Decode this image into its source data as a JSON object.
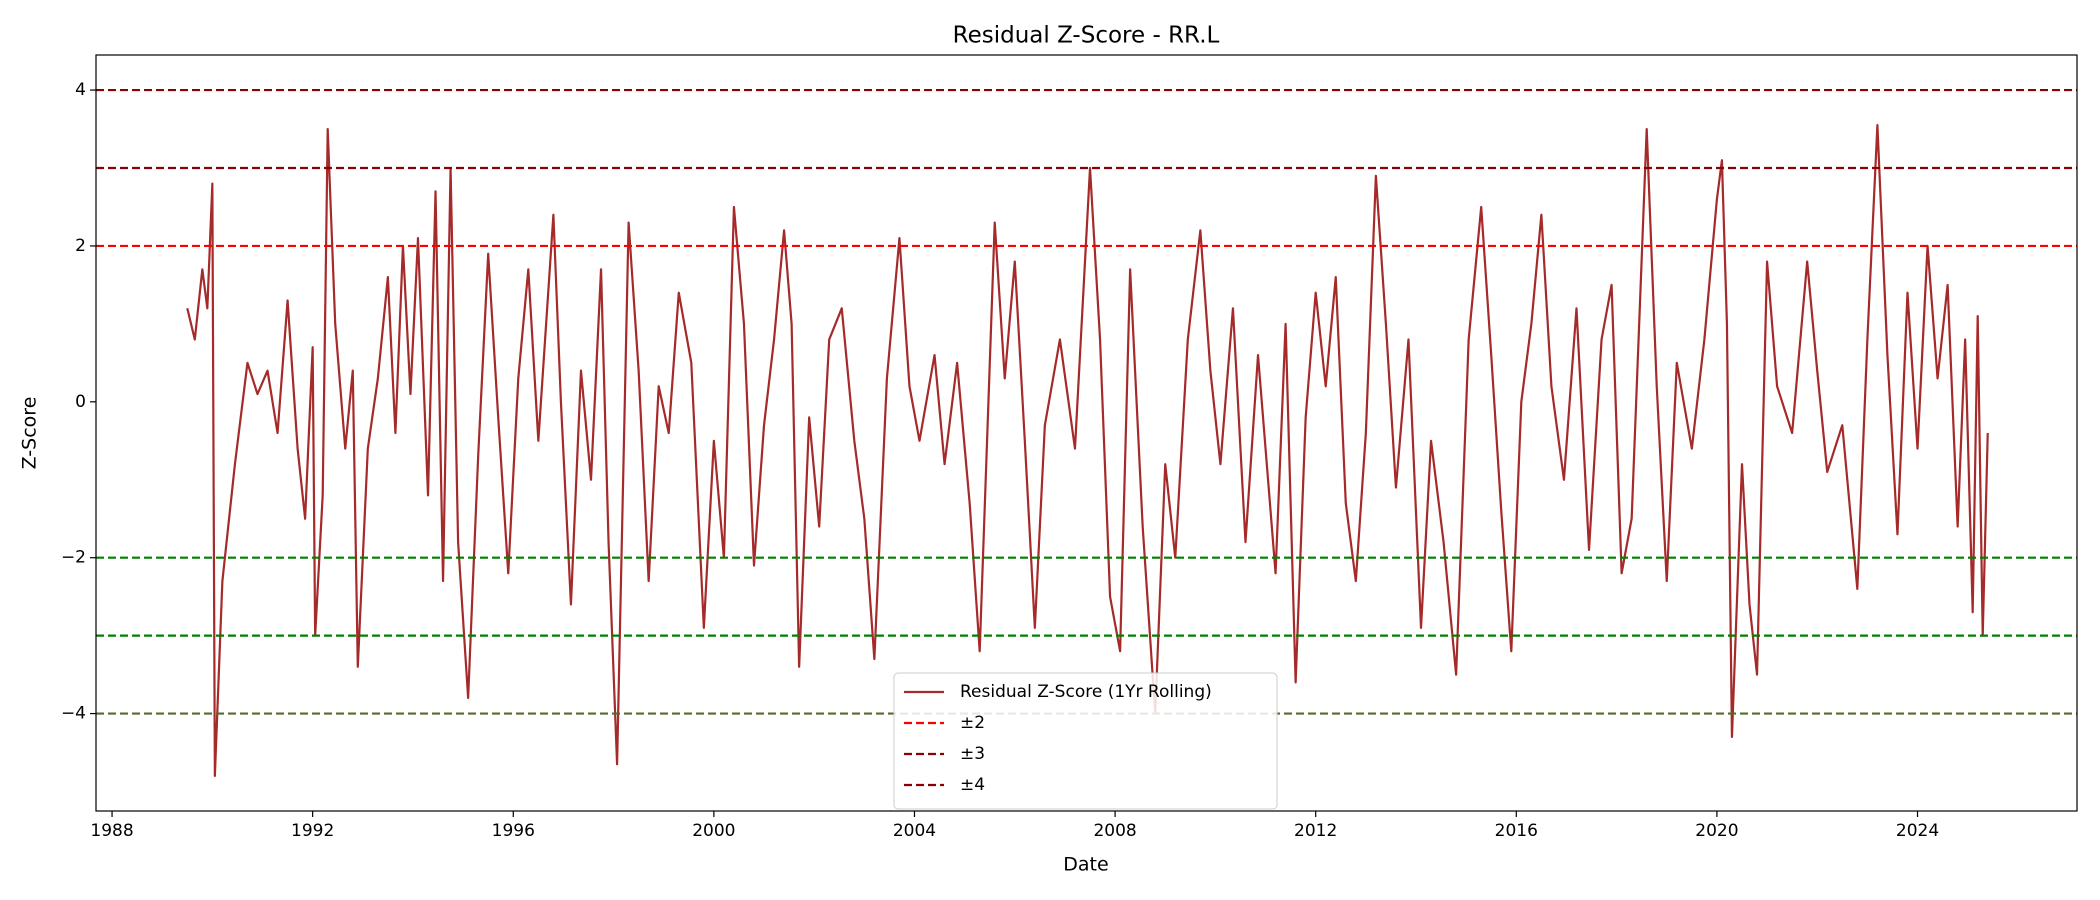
{
  "chart_data": {
    "type": "line",
    "title": "Residual Z-Score - RR.L",
    "x_label": "Date",
    "y_label": "Z-Score",
    "xlim": [
      1987.68,
      2027.18
    ],
    "ylim": [
      -5.25,
      4.45
    ],
    "xticks": [
      1988,
      1992,
      1996,
      2000,
      2004,
      2008,
      2012,
      2016,
      2020,
      2024
    ],
    "yticks": [
      {
        "value": -4,
        "label": "−4"
      },
      {
        "value": -2,
        "label": "−2"
      },
      0,
      2,
      4
    ],
    "grid": false,
    "legend": "lower center",
    "series": [
      {
        "name": "Residual Z-Score (1Yr Rolling)",
        "color": "#a52a2a",
        "x": [
          1989.5,
          1989.65,
          1989.8,
          1989.9,
          1990.0,
          1990.05,
          1990.2,
          1990.45,
          1990.7,
          1990.9,
          1991.1,
          1991.3,
          1991.5,
          1991.7,
          1991.85,
          1992.0,
          1992.05,
          1992.2,
          1992.3,
          1992.45,
          1992.65,
          1992.8,
          1992.9,
          1993.1,
          1993.3,
          1993.5,
          1993.65,
          1993.8,
          1993.95,
          1994.1,
          1994.3,
          1994.45,
          1994.6,
          1994.75,
          1994.9,
          1995.1,
          1995.3,
          1995.5,
          1995.7,
          1995.9,
          1996.1,
          1996.3,
          1996.5,
          1996.8,
          1996.95,
          1997.15,
          1997.35,
          1997.55,
          1997.75,
          1997.9,
          1998.07,
          1998.3,
          1998.5,
          1998.7,
          1998.9,
          1999.1,
          1999.3,
          1999.55,
          1999.8,
          2000.0,
          2000.2,
          2000.4,
          2000.6,
          2000.8,
          2001.0,
          2001.2,
          2001.4,
          2001.55,
          2001.7,
          2001.9,
          2002.1,
          2002.3,
          2002.55,
          2002.8,
          2003.0,
          2003.2,
          2003.45,
          2003.7,
          2003.9,
          2004.1,
          2004.4,
          2004.6,
          2004.85,
          2005.1,
          2005.3,
          2005.6,
          2005.8,
          2006.0,
          2006.2,
          2006.4,
          2006.6,
          2006.9,
          2007.2,
          2007.5,
          2007.7,
          2007.9,
          2008.1,
          2008.3,
          2008.55,
          2008.8,
          2009.0,
          2009.2,
          2009.45,
          2009.7,
          2009.9,
          2010.1,
          2010.35,
          2010.6,
          2010.85,
          2011.0,
          2011.2,
          2011.4,
          2011.6,
          2011.8,
          2012.0,
          2012.2,
          2012.4,
          2012.6,
          2012.8,
          2013.0,
          2013.2,
          2013.4,
          2013.6,
          2013.85,
          2014.1,
          2014.3,
          2014.55,
          2014.8,
          2015.05,
          2015.3,
          2015.5,
          2015.7,
          2015.9,
          2016.1,
          2016.3,
          2016.5,
          2016.7,
          2016.95,
          2017.2,
          2017.45,
          2017.7,
          2017.9,
          2018.1,
          2018.3,
          2018.6,
          2018.8,
          2019.0,
          2019.2,
          2019.5,
          2019.75,
          2020.0,
          2020.1,
          2020.2,
          2020.3,
          2020.5,
          2020.65,
          2020.8,
          2021.0,
          2021.2,
          2021.5,
          2021.8,
          2022.0,
          2022.2,
          2022.5,
          2022.8,
          2023.0,
          2023.2,
          2023.4,
          2023.6,
          2023.8,
          2024.0,
          2024.2,
          2024.4,
          2024.6,
          2024.8,
          2024.95,
          2025.1,
          2025.2,
          2025.3,
          2025.4
        ],
        "values": [
          1.2,
          0.8,
          1.7,
          1.2,
          2.8,
          -4.8,
          -2.3,
          -0.8,
          0.5,
          0.1,
          0.4,
          -0.4,
          1.3,
          -0.6,
          -1.5,
          0.7,
          -3.0,
          -1.2,
          3.5,
          1.0,
          -0.6,
          0.4,
          -3.4,
          -0.6,
          0.3,
          1.6,
          -0.4,
          2.0,
          0.1,
          2.1,
          -1.2,
          2.7,
          -2.3,
          3.0,
          -1.8,
          -3.8,
          -0.7,
          1.9,
          -0.2,
          -2.2,
          0.3,
          1.7,
          -0.5,
          2.4,
          0.0,
          -2.6,
          0.4,
          -1.0,
          1.7,
          -1.8,
          -4.65,
          2.3,
          0.4,
          -2.3,
          0.2,
          -0.4,
          1.4,
          0.5,
          -2.9,
          -0.5,
          -2.0,
          2.5,
          1.0,
          -2.1,
          -0.3,
          0.8,
          2.2,
          1.0,
          -3.4,
          -0.2,
          -1.6,
          0.8,
          1.2,
          -0.5,
          -1.5,
          -3.3,
          0.3,
          2.1,
          0.2,
          -0.5,
          0.6,
          -0.8,
          0.5,
          -1.3,
          -3.2,
          2.3,
          0.3,
          1.8,
          -0.5,
          -2.9,
          -0.3,
          0.8,
          -0.6,
          3.0,
          0.8,
          -2.5,
          -3.2,
          1.7,
          -1.6,
          -4.0,
          -0.8,
          -2.0,
          0.8,
          2.2,
          0.4,
          -0.8,
          1.2,
          -1.8,
          0.6,
          -0.6,
          -2.2,
          1.0,
          -3.6,
          -0.2,
          1.4,
          0.2,
          1.6,
          -1.3,
          -2.3,
          -0.4,
          2.9,
          1.0,
          -1.1,
          0.8,
          -2.9,
          -0.5,
          -1.8,
          -3.5,
          0.8,
          2.5,
          0.6,
          -1.4,
          -3.2,
          0.0,
          1.0,
          2.4,
          0.2,
          -1.0,
          1.2,
          -1.9,
          0.8,
          1.5,
          -2.2,
          -1.5,
          3.5,
          0.2,
          -2.3,
          0.5,
          -0.6,
          0.8,
          2.6,
          3.1,
          1.0,
          -4.3,
          -0.8,
          -2.6,
          -3.5,
          1.8,
          0.2,
          -0.4,
          1.8,
          0.4,
          -0.9,
          -0.3,
          -2.4,
          0.8,
          3.55,
          0.6,
          -1.7,
          1.4,
          -0.6,
          2.0,
          0.3,
          1.5,
          -1.6,
          0.8,
          -2.7,
          1.1,
          -3.0,
          -0.4
        ]
      }
    ],
    "hlines": [
      {
        "value": 2,
        "color": "#ff0000",
        "name": "±2"
      },
      {
        "value": -2,
        "color": "#008000"
      },
      {
        "value": 3,
        "color": "#8b0000",
        "name": "±3"
      },
      {
        "value": -3,
        "color": "#008000"
      },
      {
        "value": 4,
        "color": "#8b0000",
        "name": "±4"
      },
      {
        "value": -4,
        "color": "#556b2f"
      }
    ]
  }
}
